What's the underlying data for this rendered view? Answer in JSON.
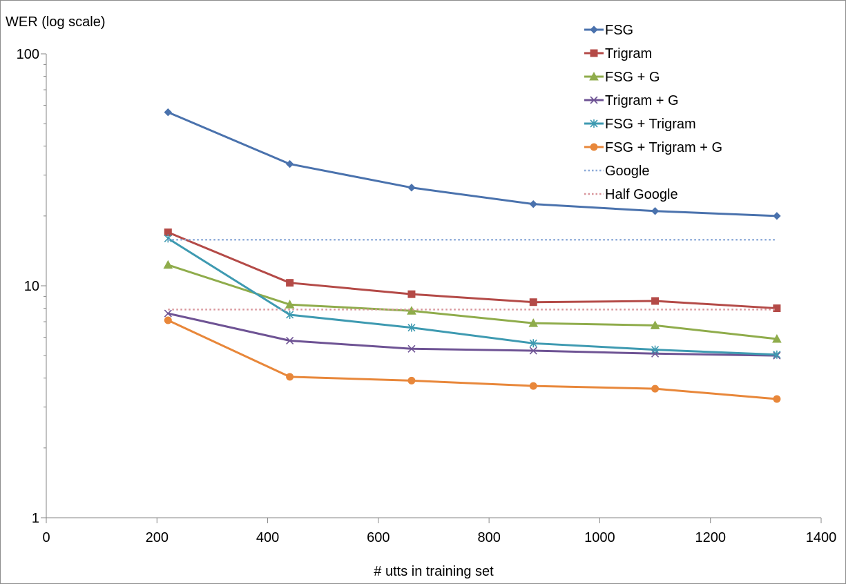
{
  "chart_data": {
    "type": "line",
    "title": "",
    "ylabel": "WER (log scale)",
    "xlabel": "# utts in training set",
    "yscale": "log",
    "xlim": [
      0,
      1400
    ],
    "ylim": [
      1,
      100
    ],
    "x_ticks": [
      "0",
      "200",
      "400",
      "600",
      "800",
      "1000",
      "1200",
      "1400"
    ],
    "y_ticks": [
      "1",
      "10",
      "100"
    ],
    "legend_position": "top-right",
    "grid": false,
    "x": [
      220,
      440,
      660,
      880,
      1100,
      1320
    ],
    "series": [
      {
        "name": "FSG",
        "values": [
          56,
          33.5,
          26.5,
          22.5,
          21,
          20
        ],
        "color": "#4a72ad",
        "marker": "diamond",
        "style": "solid"
      },
      {
        "name": "Trigram",
        "values": [
          17,
          10.3,
          9.2,
          8.5,
          8.6,
          8.0
        ],
        "color": "#b44a47",
        "marker": "square",
        "style": "solid"
      },
      {
        "name": "FSG + G",
        "values": [
          12.3,
          8.3,
          7.8,
          6.9,
          6.75,
          5.9
        ],
        "color": "#8fac4b",
        "marker": "triangle",
        "style": "solid"
      },
      {
        "name": "Trigram + G",
        "values": [
          7.6,
          5.8,
          5.35,
          5.25,
          5.1,
          5.0
        ],
        "color": "#6e5394",
        "marker": "x",
        "style": "solid"
      },
      {
        "name": "FSG + Trigram",
        "values": [
          16,
          7.5,
          6.6,
          5.65,
          5.3,
          5.05
        ],
        "color": "#3e9ab1",
        "marker": "star",
        "style": "solid"
      },
      {
        "name": "FSG + Trigram + G",
        "values": [
          7.1,
          4.05,
          3.9,
          3.7,
          3.6,
          3.25
        ],
        "color": "#e8873a",
        "marker": "circle",
        "style": "solid"
      },
      {
        "name": "Google",
        "values": [
          15.8,
          15.8
        ],
        "x": [
          220,
          1320
        ],
        "color": "#8ba9d8",
        "marker": "none",
        "style": "dotted"
      },
      {
        "name": "Half Google",
        "values": [
          7.9,
          7.9
        ],
        "x": [
          220,
          1320
        ],
        "color": "#d8949a",
        "marker": "none",
        "style": "dotted"
      }
    ]
  }
}
